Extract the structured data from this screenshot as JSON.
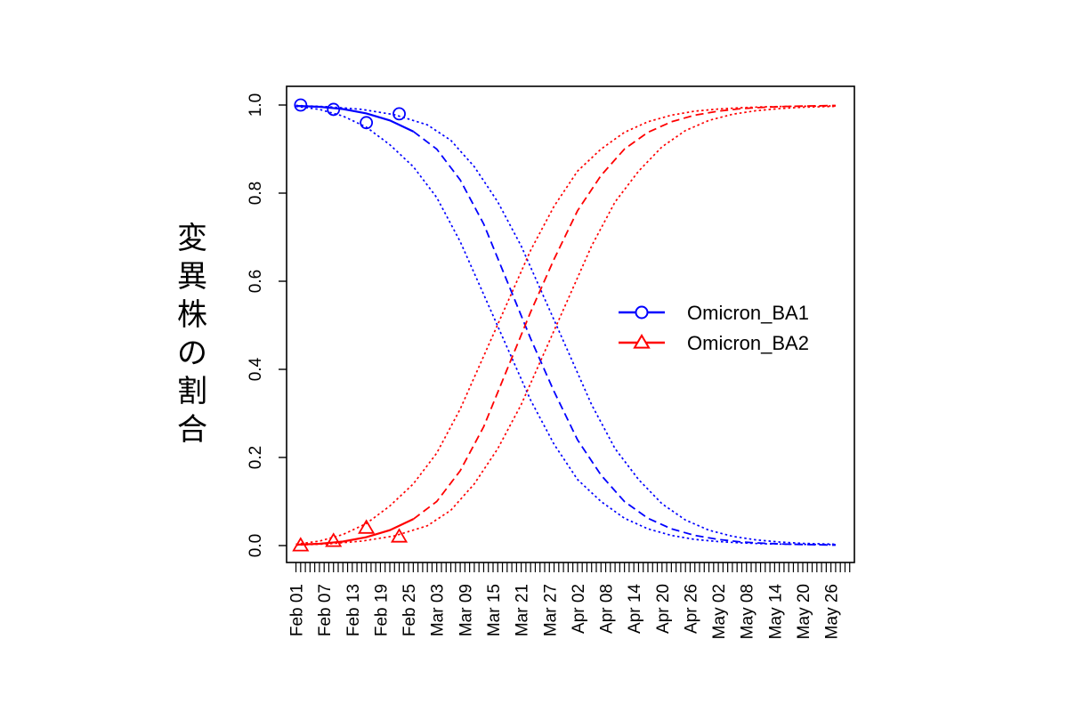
{
  "chart_data": {
    "type": "line",
    "ylabel": "変異株の割合",
    "xlabel": "",
    "title": "",
    "xlim": [
      "2022-01-30",
      "2022-05-31"
    ],
    "ylim": [
      0,
      1
    ],
    "y_ticks": [
      "0.0",
      "0.2",
      "0.4",
      "0.6",
      "0.8",
      "1.0"
    ],
    "x_tick_labels": [
      "Feb 01",
      "Feb 07",
      "Feb 13",
      "Feb 19",
      "Feb 25",
      "Mar 03",
      "Mar 09",
      "Mar 15",
      "Mar 21",
      "Mar 27",
      "Apr 02",
      "Apr 08",
      "Apr 14",
      "Apr 20",
      "Apr 26",
      "May 02",
      "May 08",
      "May 14",
      "May 20",
      "May 26"
    ],
    "x_minor_ticks": "daily",
    "grid": false,
    "legend_position": "right-center",
    "series": [
      {
        "name": "Omicron_BA1",
        "color": "#0000ff",
        "marker": "circle",
        "observed": [
          {
            "x": "2022-02-02",
            "y": 1.0
          },
          {
            "x": "2022-02-09",
            "y": 0.99
          },
          {
            "x": "2022-02-16",
            "y": 0.96
          },
          {
            "x": "2022-02-23",
            "y": 0.98
          }
        ],
        "fit_solid": [
          {
            "x": "2022-02-01",
            "y": 0.998
          },
          {
            "x": "2022-02-06",
            "y": 0.996
          },
          {
            "x": "2022-02-11",
            "y": 0.991
          },
          {
            "x": "2022-02-16",
            "y": 0.981
          },
          {
            "x": "2022-02-21",
            "y": 0.965
          },
          {
            "x": "2022-02-26",
            "y": 0.94
          }
        ],
        "fit_dashed": [
          {
            "x": "2022-02-26",
            "y": 0.94
          },
          {
            "x": "2022-03-03",
            "y": 0.9
          },
          {
            "x": "2022-03-08",
            "y": 0.83
          },
          {
            "x": "2022-03-13",
            "y": 0.73
          },
          {
            "x": "2022-03-18",
            "y": 0.6
          },
          {
            "x": "2022-03-23",
            "y": 0.47
          },
          {
            "x": "2022-03-28",
            "y": 0.35
          },
          {
            "x": "2022-04-02",
            "y": 0.24
          },
          {
            "x": "2022-04-07",
            "y": 0.16
          },
          {
            "x": "2022-04-12",
            "y": 0.1
          },
          {
            "x": "2022-04-17",
            "y": 0.062
          },
          {
            "x": "2022-04-22",
            "y": 0.038
          },
          {
            "x": "2022-04-27",
            "y": 0.023
          },
          {
            "x": "2022-05-02",
            "y": 0.014
          },
          {
            "x": "2022-05-07",
            "y": 0.008
          },
          {
            "x": "2022-05-12",
            "y": 0.005
          },
          {
            "x": "2022-05-17",
            "y": 0.003
          },
          {
            "x": "2022-05-22",
            "y": 0.002
          },
          {
            "x": "2022-05-27",
            "y": 0.001
          }
        ],
        "ci_upper": [
          {
            "x": "2022-02-01",
            "y": 0.999
          },
          {
            "x": "2022-02-08",
            "y": 0.996
          },
          {
            "x": "2022-02-15",
            "y": 0.99
          },
          {
            "x": "2022-02-22",
            "y": 0.978
          },
          {
            "x": "2022-03-01",
            "y": 0.955
          },
          {
            "x": "2022-03-06",
            "y": 0.92
          },
          {
            "x": "2022-03-11",
            "y": 0.86
          },
          {
            "x": "2022-03-16",
            "y": 0.78
          },
          {
            "x": "2022-03-21",
            "y": 0.68
          },
          {
            "x": "2022-03-26",
            "y": 0.56
          },
          {
            "x": "2022-03-31",
            "y": 0.44
          },
          {
            "x": "2022-04-05",
            "y": 0.32
          },
          {
            "x": "2022-04-10",
            "y": 0.22
          },
          {
            "x": "2022-04-15",
            "y": 0.15
          },
          {
            "x": "2022-04-20",
            "y": 0.095
          },
          {
            "x": "2022-04-25",
            "y": 0.058
          },
          {
            "x": "2022-04-30",
            "y": 0.035
          },
          {
            "x": "2022-05-05",
            "y": 0.021
          },
          {
            "x": "2022-05-10",
            "y": 0.013
          },
          {
            "x": "2022-05-15",
            "y": 0.008
          },
          {
            "x": "2022-05-20",
            "y": 0.005
          },
          {
            "x": "2022-05-27",
            "y": 0.003
          }
        ],
        "ci_lower": [
          {
            "x": "2022-02-01",
            "y": 0.997
          },
          {
            "x": "2022-02-06",
            "y": 0.99
          },
          {
            "x": "2022-02-11",
            "y": 0.975
          },
          {
            "x": "2022-02-16",
            "y": 0.95
          },
          {
            "x": "2022-02-21",
            "y": 0.91
          },
          {
            "x": "2022-02-26",
            "y": 0.86
          },
          {
            "x": "2022-03-03",
            "y": 0.79
          },
          {
            "x": "2022-03-08",
            "y": 0.69
          },
          {
            "x": "2022-03-13",
            "y": 0.57
          },
          {
            "x": "2022-03-18",
            "y": 0.45
          },
          {
            "x": "2022-03-23",
            "y": 0.33
          },
          {
            "x": "2022-03-28",
            "y": 0.23
          },
          {
            "x": "2022-04-02",
            "y": 0.15
          },
          {
            "x": "2022-04-07",
            "y": 0.1
          },
          {
            "x": "2022-04-12",
            "y": 0.062
          },
          {
            "x": "2022-04-17",
            "y": 0.038
          },
          {
            "x": "2022-04-22",
            "y": 0.023
          },
          {
            "x": "2022-04-27",
            "y": 0.014
          },
          {
            "x": "2022-05-02",
            "y": 0.009
          },
          {
            "x": "2022-05-07",
            "y": 0.006
          },
          {
            "x": "2022-05-12",
            "y": 0.004
          },
          {
            "x": "2022-05-17",
            "y": 0.003
          },
          {
            "x": "2022-05-27",
            "y": 0.002
          }
        ]
      },
      {
        "name": "Omicron_BA2",
        "color": "#ff0000",
        "marker": "triangle",
        "observed": [
          {
            "x": "2022-02-02",
            "y": 0.0
          },
          {
            "x": "2022-02-09",
            "y": 0.01
          },
          {
            "x": "2022-02-16",
            "y": 0.04
          },
          {
            "x": "2022-02-23",
            "y": 0.02
          }
        ],
        "fit_solid": [
          {
            "x": "2022-02-01",
            "y": 0.002
          },
          {
            "x": "2022-02-06",
            "y": 0.004
          },
          {
            "x": "2022-02-11",
            "y": 0.009
          },
          {
            "x": "2022-02-16",
            "y": 0.019
          },
          {
            "x": "2022-02-21",
            "y": 0.035
          },
          {
            "x": "2022-02-26",
            "y": 0.06
          }
        ],
        "fit_dashed": [
          {
            "x": "2022-02-26",
            "y": 0.06
          },
          {
            "x": "2022-03-03",
            "y": 0.1
          },
          {
            "x": "2022-03-08",
            "y": 0.17
          },
          {
            "x": "2022-03-13",
            "y": 0.27
          },
          {
            "x": "2022-03-18",
            "y": 0.4
          },
          {
            "x": "2022-03-23",
            "y": 0.53
          },
          {
            "x": "2022-03-28",
            "y": 0.65
          },
          {
            "x": "2022-04-02",
            "y": 0.76
          },
          {
            "x": "2022-04-07",
            "y": 0.84
          },
          {
            "x": "2022-04-12",
            "y": 0.9
          },
          {
            "x": "2022-04-17",
            "y": 0.938
          },
          {
            "x": "2022-04-22",
            "y": 0.962
          },
          {
            "x": "2022-04-27",
            "y": 0.977
          },
          {
            "x": "2022-05-02",
            "y": 0.986
          },
          {
            "x": "2022-05-07",
            "y": 0.992
          },
          {
            "x": "2022-05-12",
            "y": 0.995
          },
          {
            "x": "2022-05-17",
            "y": 0.997
          },
          {
            "x": "2022-05-22",
            "y": 0.998
          },
          {
            "x": "2022-05-27",
            "y": 0.999
          }
        ],
        "ci_upper": [
          {
            "x": "2022-02-01",
            "y": 0.003
          },
          {
            "x": "2022-02-06",
            "y": 0.01
          },
          {
            "x": "2022-02-11",
            "y": 0.025
          },
          {
            "x": "2022-02-16",
            "y": 0.05
          },
          {
            "x": "2022-02-21",
            "y": 0.09
          },
          {
            "x": "2022-02-26",
            "y": 0.14
          },
          {
            "x": "2022-03-03",
            "y": 0.21
          },
          {
            "x": "2022-03-08",
            "y": 0.31
          },
          {
            "x": "2022-03-13",
            "y": 0.43
          },
          {
            "x": "2022-03-18",
            "y": 0.55
          },
          {
            "x": "2022-03-23",
            "y": 0.67
          },
          {
            "x": "2022-03-28",
            "y": 0.77
          },
          {
            "x": "2022-04-02",
            "y": 0.85
          },
          {
            "x": "2022-04-07",
            "y": 0.9
          },
          {
            "x": "2022-04-12",
            "y": 0.938
          },
          {
            "x": "2022-04-17",
            "y": 0.962
          },
          {
            "x": "2022-04-22",
            "y": 0.977
          },
          {
            "x": "2022-04-27",
            "y": 0.986
          },
          {
            "x": "2022-05-02",
            "y": 0.991
          },
          {
            "x": "2022-05-07",
            "y": 0.994
          },
          {
            "x": "2022-05-12",
            "y": 0.996
          },
          {
            "x": "2022-05-17",
            "y": 0.997
          },
          {
            "x": "2022-05-27",
            "y": 0.998
          }
        ],
        "ci_lower": [
          {
            "x": "2022-02-01",
            "y": 0.001
          },
          {
            "x": "2022-02-08",
            "y": 0.004
          },
          {
            "x": "2022-02-15",
            "y": 0.01
          },
          {
            "x": "2022-02-22",
            "y": 0.022
          },
          {
            "x": "2022-03-01",
            "y": 0.045
          },
          {
            "x": "2022-03-06",
            "y": 0.08
          },
          {
            "x": "2022-03-11",
            "y": 0.14
          },
          {
            "x": "2022-03-16",
            "y": 0.22
          },
          {
            "x": "2022-03-21",
            "y": 0.32
          },
          {
            "x": "2022-03-26",
            "y": 0.44
          },
          {
            "x": "2022-03-31",
            "y": 0.56
          },
          {
            "x": "2022-04-05",
            "y": 0.68
          },
          {
            "x": "2022-04-10",
            "y": 0.78
          },
          {
            "x": "2022-04-15",
            "y": 0.85
          },
          {
            "x": "2022-04-20",
            "y": 0.905
          },
          {
            "x": "2022-04-25",
            "y": 0.942
          },
          {
            "x": "2022-04-30",
            "y": 0.965
          },
          {
            "x": "2022-05-05",
            "y": 0.979
          },
          {
            "x": "2022-05-10",
            "y": 0.987
          },
          {
            "x": "2022-05-15",
            "y": 0.992
          },
          {
            "x": "2022-05-20",
            "y": 0.995
          },
          {
            "x": "2022-05-27",
            "y": 0.997
          }
        ]
      }
    ]
  }
}
